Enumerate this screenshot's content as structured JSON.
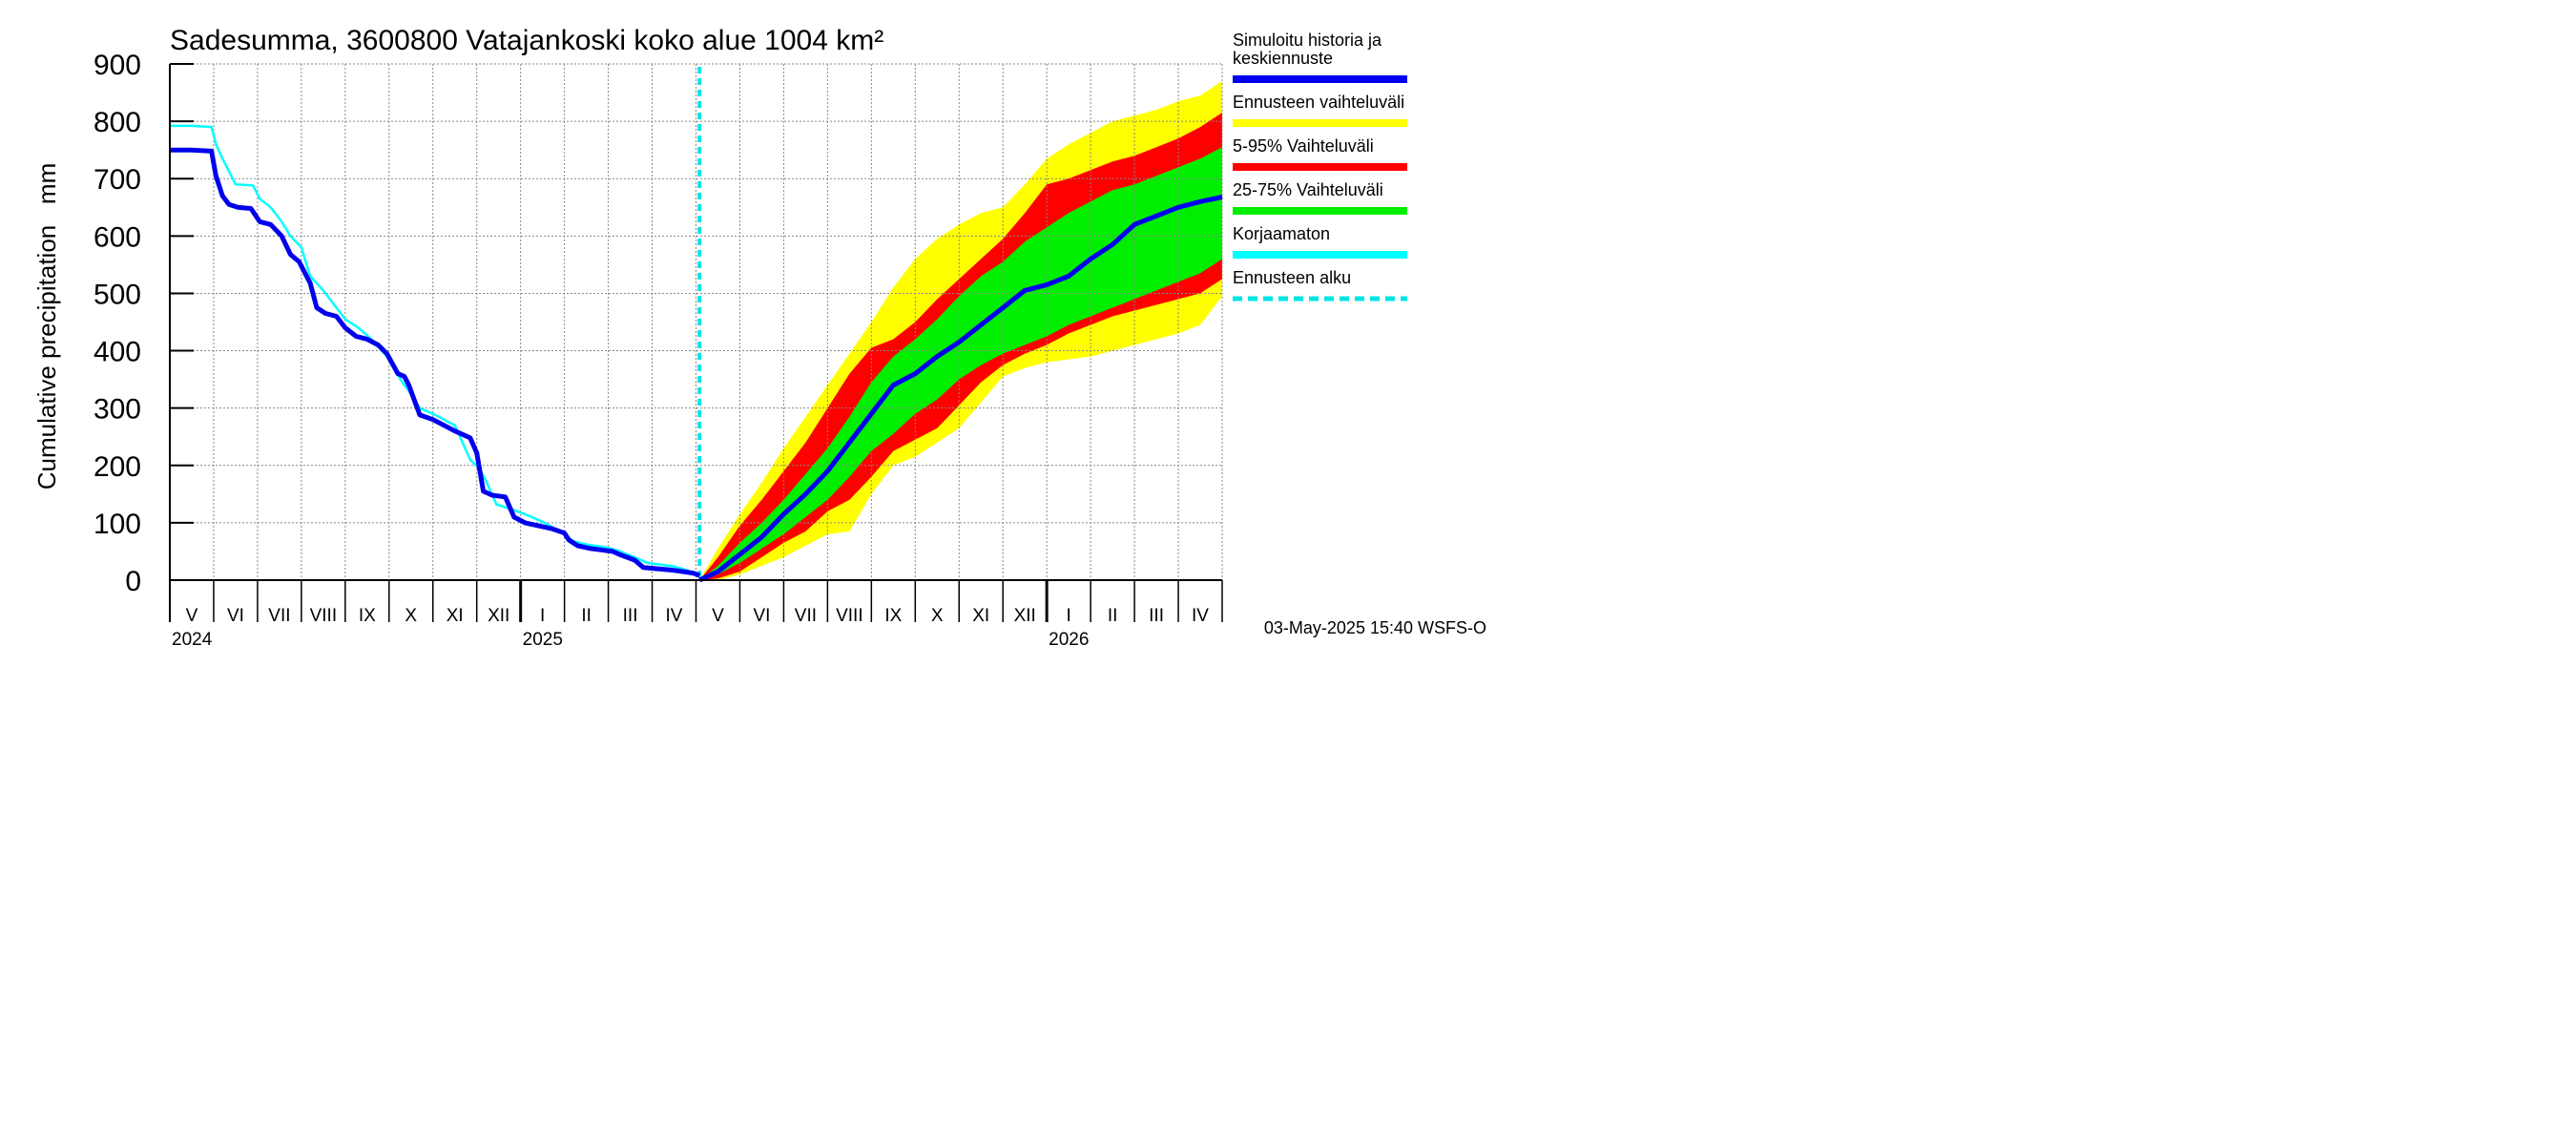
{
  "chart_data": {
    "type": "area",
    "title": "Sadesumma, 3600800 Vatajankoski koko alue 1004 km²",
    "ylabel": "Cumulative precipitation   mm",
    "xlabel": "",
    "ylim": [
      0,
      900
    ],
    "yticks": [
      0,
      100,
      200,
      300,
      400,
      500,
      600,
      700,
      800,
      900
    ],
    "x_unit": "months since 2024-04-01",
    "xlim": [
      1.0,
      25.0
    ],
    "month_ticks": [
      1.0,
      2.0,
      3.0,
      4.0,
      5.0,
      6.0,
      7.0,
      8.0,
      9.0,
      10.0,
      11.0,
      12.0,
      13.0,
      14.0,
      15.0,
      16.0,
      17.0,
      18.0,
      19.0,
      20.0,
      21.0,
      22.0,
      23.0,
      24.0,
      25.0
    ],
    "year_ticks": [
      9.0,
      21.0
    ],
    "month_labels": [
      {
        "label": "V",
        "x": 1.5
      },
      {
        "label": "VI",
        "x": 2.5
      },
      {
        "label": "VII",
        "x": 3.5
      },
      {
        "label": "VIII",
        "x": 4.5
      },
      {
        "label": "IX",
        "x": 5.5
      },
      {
        "label": "X",
        "x": 6.5
      },
      {
        "label": "XI",
        "x": 7.5
      },
      {
        "label": "XII",
        "x": 8.5
      },
      {
        "label": "I",
        "x": 9.5
      },
      {
        "label": "II",
        "x": 10.5
      },
      {
        "label": "III",
        "x": 11.5
      },
      {
        "label": "IV",
        "x": 12.5
      },
      {
        "label": "V",
        "x": 13.5
      },
      {
        "label": "VI",
        "x": 14.5
      },
      {
        "label": "VII",
        "x": 15.5
      },
      {
        "label": "VIII",
        "x": 16.5
      },
      {
        "label": "IX",
        "x": 17.5
      },
      {
        "label": "X",
        "x": 18.5
      },
      {
        "label": "XI",
        "x": 19.5
      },
      {
        "label": "XII",
        "x": 20.5
      },
      {
        "label": "I",
        "x": 21.5
      },
      {
        "label": "II",
        "x": 22.5
      },
      {
        "label": "III",
        "x": 23.5
      },
      {
        "label": "IV",
        "x": 24.5
      }
    ],
    "year_labels": [
      {
        "label": "2024",
        "x": 1.0
      },
      {
        "label": "2025",
        "x": 9.0
      },
      {
        "label": "2026",
        "x": 21.0
      }
    ],
    "forecast_start_x": 13.08,
    "simulated_history": {
      "x": [
        1.0,
        1.5,
        1.95,
        2.05,
        2.2,
        2.35,
        2.55,
        2.85,
        3.05,
        3.3,
        3.55,
        3.75,
        3.95,
        4.05,
        4.2,
        4.35,
        4.55,
        4.8,
        5.0,
        5.25,
        5.5,
        5.75,
        5.95,
        6.2,
        6.35,
        6.45,
        6.7,
        7.0,
        7.5,
        7.85,
        8.0,
        8.15,
        8.35,
        8.65,
        8.85,
        9.1,
        9.4,
        9.7,
        10.0,
        10.1,
        10.3,
        10.6,
        10.9,
        11.1,
        11.25,
        11.6,
        11.8,
        12.1,
        12.4,
        12.7,
        12.95,
        13.08
      ],
      "y": [
        750,
        750,
        748,
        705,
        670,
        655,
        650,
        648,
        625,
        620,
        600,
        568,
        555,
        540,
        518,
        475,
        465,
        460,
        440,
        425,
        420,
        410,
        395,
        360,
        355,
        340,
        288,
        280,
        260,
        248,
        222,
        155,
        148,
        145,
        110,
        100,
        95,
        90,
        82,
        70,
        60,
        55,
        52,
        50,
        45,
        35,
        22,
        20,
        18,
        15,
        12,
        8
      ]
    },
    "uncorrected": {
      "x": [
        1.0,
        1.5,
        1.95,
        2.05,
        2.2,
        2.5,
        2.9,
        3.05,
        3.3,
        3.55,
        3.75,
        4.0,
        4.2,
        4.5,
        4.8,
        5.0,
        5.3,
        5.6,
        5.95,
        6.3,
        6.45,
        6.7,
        7.0,
        7.5,
        7.85,
        8.05,
        8.2,
        8.45,
        8.85,
        9.2,
        9.6,
        10.0,
        10.2,
        10.5,
        10.9,
        11.2,
        11.6,
        11.9,
        12.2,
        12.5,
        12.8,
        13.08
      ],
      "y": [
        792,
        792,
        790,
        760,
        735,
        690,
        688,
        665,
        650,
        625,
        600,
        580,
        530,
        505,
        475,
        455,
        440,
        420,
        390,
        345,
        330,
        300,
        290,
        270,
        210,
        195,
        175,
        132,
        122,
        112,
        98,
        80,
        68,
        62,
        58,
        52,
        40,
        30,
        27,
        24,
        17,
        10
      ]
    },
    "forecast_x": [
      13.08,
      13.5,
      14.0,
      14.5,
      15.0,
      15.5,
      16.0,
      16.5,
      17.0,
      17.5,
      18.0,
      18.5,
      19.0,
      19.5,
      20.0,
      20.5,
      21.0,
      21.5,
      22.0,
      22.5,
      23.0,
      23.5,
      24.0,
      24.5,
      25.0
    ],
    "median_forecast": [
      0,
      15,
      45,
      75,
      115,
      150,
      190,
      240,
      290,
      340,
      360,
      390,
      415,
      445,
      475,
      505,
      515,
      530,
      560,
      585,
      620,
      635,
      650,
      660,
      668
    ],
    "band_25_75": {
      "lower": [
        0,
        10,
        30,
        55,
        80,
        110,
        140,
        180,
        225,
        255,
        290,
        315,
        350,
        375,
        395,
        410,
        425,
        445,
        460,
        475,
        490,
        505,
        520,
        535,
        560
      ],
      "upper": [
        0,
        25,
        65,
        100,
        140,
        185,
        230,
        285,
        345,
        390,
        420,
        455,
        495,
        530,
        555,
        590,
        615,
        640,
        660,
        680,
        690,
        705,
        720,
        735,
        755
      ]
    },
    "band_5_95": {
      "lower": [
        0,
        3,
        15,
        40,
        65,
        85,
        120,
        140,
        180,
        225,
        245,
        265,
        305,
        345,
        375,
        395,
        410,
        430,
        445,
        460,
        470,
        480,
        490,
        500,
        525
      ],
      "upper": [
        0,
        40,
        95,
        140,
        190,
        240,
        300,
        360,
        405,
        420,
        450,
        490,
        525,
        560,
        595,
        640,
        690,
        700,
        715,
        730,
        740,
        755,
        770,
        790,
        815
      ]
    },
    "band_full": {
      "lower": [
        0,
        0,
        10,
        25,
        40,
        60,
        80,
        85,
        150,
        200,
        215,
        240,
        265,
        310,
        355,
        370,
        380,
        385,
        390,
        400,
        410,
        420,
        430,
        445,
        495
      ],
      "upper": [
        0,
        55,
        115,
        170,
        230,
        285,
        340,
        395,
        450,
        510,
        560,
        595,
        620,
        640,
        650,
        690,
        735,
        760,
        780,
        800,
        810,
        820,
        835,
        845,
        870
      ]
    },
    "legend": [
      {
        "label": "Simuloitu historia ja keskiennuste",
        "lines": [
          "Simuloitu historia ja",
          "keskiennuste"
        ],
        "color": "#0000ee",
        "style": "solid"
      },
      {
        "label": "Ennusteen vaihteluväli",
        "lines": [
          "Ennusteen vaihteluväli"
        ],
        "color": "#ffff00",
        "style": "solid"
      },
      {
        "label": "5-95% Vaihteluväli",
        "lines": [
          "5-95% Vaihteluväli"
        ],
        "color": "#ff0000",
        "style": "solid"
      },
      {
        "label": "25-75% Vaihteluväli",
        "lines": [
          "25-75% Vaihteluväli"
        ],
        "color": "#00ee00",
        "style": "solid"
      },
      {
        "label": "Korjaamaton",
        "lines": [
          "Korjaamaton"
        ],
        "color": "#00ffff",
        "style": "solid"
      },
      {
        "label": "Ennusteen alku",
        "lines": [
          "Ennusteen alku"
        ],
        "color": "#00e5e5",
        "style": "dashed"
      }
    ],
    "footer": "03-May-2025 15:40 WSFS-O"
  },
  "colors": {
    "simulated": "#0000ee",
    "uncorrected": "#00ffff",
    "forecast_start": "#00e5e5",
    "band_full": "#ffff00",
    "band_5_95": "#ff0000",
    "band_25_75": "#00ee00",
    "grid": "#888888"
  }
}
